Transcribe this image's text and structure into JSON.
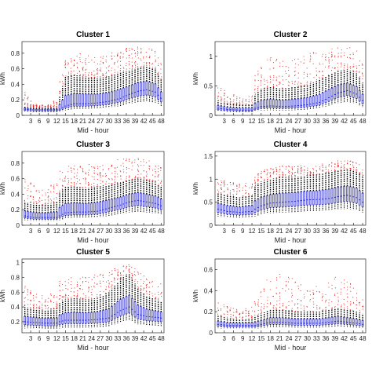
{
  "chart_data": [
    {
      "type": "box",
      "title": "Cluster 1",
      "xlabel": "Mid - hour",
      "ylabel": "kWh",
      "ylim": [
        0,
        0.95
      ],
      "yticks": [
        0,
        0.2,
        0.4,
        0.6,
        0.8
      ],
      "ytick_labels": [
        "0",
        "0.2",
        "0.4",
        "0.6",
        "0.8"
      ],
      "xlim": [
        0,
        49
      ],
      "xticks": [
        3,
        6,
        9,
        12,
        15,
        18,
        21,
        24,
        27,
        30,
        33,
        36,
        39,
        42,
        45,
        48
      ],
      "xtick_labels": [
        "3",
        "6",
        "9",
        "12",
        "15",
        "18",
        "21",
        "24",
        "27",
        "30",
        "33",
        "36",
        "39",
        "42",
        "45",
        "48"
      ],
      "mid_hours": [
        1,
        4,
        8,
        12,
        13,
        15,
        18,
        22,
        26,
        30,
        34,
        37,
        40,
        43,
        46,
        48
      ],
      "medians": [
        0.08,
        0.07,
        0.07,
        0.07,
        0.08,
        0.12,
        0.15,
        0.15,
        0.16,
        0.18,
        0.22,
        0.27,
        0.31,
        0.33,
        0.3,
        0.22
      ],
      "whisker_high": [
        0.12,
        0.1,
        0.1,
        0.1,
        0.25,
        0.5,
        0.52,
        0.5,
        0.48,
        0.5,
        0.55,
        0.58,
        0.62,
        0.64,
        0.6,
        0.45
      ],
      "outlier_max": [
        0.3,
        0.15,
        0.13,
        0.2,
        0.45,
        0.72,
        0.78,
        0.82,
        0.75,
        0.8,
        0.85,
        0.88,
        0.9,
        0.92,
        0.86,
        0.7
      ]
    },
    {
      "type": "box",
      "title": "Cluster 2",
      "xlabel": "Mid - hour",
      "ylabel": "kWh",
      "ylim": [
        0,
        1.25
      ],
      "yticks": [
        0,
        0.5,
        1
      ],
      "ytick_labels": [
        "0",
        "0.5",
        "1"
      ],
      "xlim": [
        0,
        49
      ],
      "xticks": [
        3,
        6,
        9,
        12,
        15,
        18,
        21,
        24,
        27,
        30,
        33,
        36,
        39,
        42,
        45,
        48
      ],
      "xtick_labels": [
        "3",
        "6",
        "9",
        "12",
        "15",
        "18",
        "21",
        "24",
        "27",
        "30",
        "33",
        "36",
        "39",
        "42",
        "45",
        "48"
      ],
      "mid_hours": [
        1,
        4,
        8,
        12,
        13,
        15,
        18,
        22,
        26,
        30,
        34,
        37,
        40,
        43,
        46,
        48
      ],
      "medians": [
        0.12,
        0.1,
        0.09,
        0.09,
        0.12,
        0.15,
        0.16,
        0.15,
        0.16,
        0.18,
        0.22,
        0.3,
        0.38,
        0.42,
        0.36,
        0.25
      ],
      "whisker_high": [
        0.25,
        0.2,
        0.18,
        0.18,
        0.35,
        0.45,
        0.48,
        0.45,
        0.48,
        0.52,
        0.6,
        0.68,
        0.75,
        0.78,
        0.72,
        0.55
      ],
      "outlier_max": [
        0.5,
        0.4,
        0.3,
        0.35,
        0.7,
        0.9,
        1.0,
        0.95,
        1.0,
        1.05,
        1.1,
        1.12,
        1.15,
        1.18,
        1.1,
        0.9
      ]
    },
    {
      "type": "box",
      "title": "Cluster 3",
      "xlabel": "Mid - hour",
      "ylabel": "kWh",
      "ylim": [
        0,
        0.95
      ],
      "yticks": [
        0,
        0.2,
        0.4,
        0.6,
        0.8
      ],
      "ytick_labels": [
        "0",
        "0.2",
        "0.4",
        "0.6",
        "0.8"
      ],
      "xlim": [
        0,
        49
      ],
      "xticks": [
        3,
        6,
        9,
        12,
        15,
        18,
        21,
        24,
        27,
        30,
        33,
        36,
        39,
        42,
        45,
        48
      ],
      "xtick_labels": [
        "3",
        "6",
        "9",
        "12",
        "15",
        "18",
        "21",
        "24",
        "27",
        "30",
        "33",
        "36",
        "39",
        "42",
        "45",
        "48"
      ],
      "mid_hours": [
        1,
        4,
        8,
        12,
        13,
        15,
        18,
        22,
        26,
        30,
        34,
        37,
        40,
        43,
        46,
        48
      ],
      "medians": [
        0.12,
        0.1,
        0.1,
        0.1,
        0.12,
        0.16,
        0.17,
        0.17,
        0.18,
        0.22,
        0.26,
        0.3,
        0.32,
        0.3,
        0.28,
        0.25
      ],
      "whisker_high": [
        0.3,
        0.28,
        0.26,
        0.3,
        0.42,
        0.5,
        0.5,
        0.48,
        0.5,
        0.52,
        0.55,
        0.58,
        0.6,
        0.58,
        0.55,
        0.5
      ],
      "outlier_max": [
        0.6,
        0.52,
        0.5,
        0.55,
        0.7,
        0.78,
        0.8,
        0.78,
        0.8,
        0.82,
        0.85,
        0.86,
        0.88,
        0.85,
        0.8,
        0.75
      ]
    },
    {
      "type": "box",
      "title": "Cluster 4",
      "xlabel": "Mid - hour",
      "ylabel": "kWh",
      "ylim": [
        0,
        1.6
      ],
      "yticks": [
        0,
        0.5,
        1,
        1.5
      ],
      "ytick_labels": [
        "0",
        "0.5",
        "1",
        "1.5"
      ],
      "xlim": [
        0,
        49
      ],
      "xticks": [
        3,
        6,
        9,
        12,
        15,
        18,
        21,
        24,
        27,
        30,
        33,
        36,
        39,
        42,
        45,
        48
      ],
      "xtick_labels": [
        "3",
        "6",
        "9",
        "12",
        "15",
        "18",
        "21",
        "24",
        "27",
        "30",
        "33",
        "36",
        "39",
        "42",
        "45",
        "48"
      ],
      "mid_hours": [
        1,
        4,
        8,
        12,
        13,
        15,
        18,
        22,
        26,
        30,
        34,
        37,
        40,
        43,
        46,
        48
      ],
      "medians": [
        0.35,
        0.3,
        0.28,
        0.3,
        0.35,
        0.42,
        0.48,
        0.5,
        0.52,
        0.55,
        0.56,
        0.58,
        0.62,
        0.65,
        0.6,
        0.5
      ],
      "whisker_high": [
        0.7,
        0.65,
        0.6,
        0.65,
        0.85,
        0.95,
        1.0,
        1.05,
        1.05,
        1.08,
        1.1,
        1.15,
        1.2,
        1.22,
        1.18,
        1.05
      ],
      "outlier_max": [
        1.0,
        0.95,
        0.9,
        0.95,
        1.1,
        1.2,
        1.25,
        1.3,
        1.28,
        1.3,
        1.32,
        1.35,
        1.4,
        1.42,
        1.38,
        1.25
      ]
    },
    {
      "type": "box",
      "title": "Cluster 5",
      "xlabel": "Mid - hour",
      "ylabel": "kWh",
      "ylim": [
        0.05,
        1.05
      ],
      "yticks": [
        0.2,
        0.4,
        0.6,
        0.8,
        1
      ],
      "ytick_labels": [
        "0.2",
        "0.4",
        "0.6",
        "0.8",
        "1"
      ],
      "xlim": [
        0,
        49
      ],
      "xticks": [
        3,
        6,
        9,
        12,
        15,
        18,
        21,
        24,
        27,
        30,
        33,
        36,
        39,
        42,
        45,
        48
      ],
      "xtick_labels": [
        "3",
        "6",
        "9",
        "12",
        "15",
        "18",
        "21",
        "24",
        "27",
        "30",
        "33",
        "36",
        "39",
        "42",
        "45",
        "48"
      ],
      "mid_hours": [
        1,
        4,
        8,
        12,
        13,
        15,
        18,
        22,
        26,
        30,
        34,
        37,
        40,
        43,
        46,
        48
      ],
      "medians": [
        0.2,
        0.19,
        0.18,
        0.18,
        0.2,
        0.22,
        0.22,
        0.22,
        0.23,
        0.25,
        0.35,
        0.4,
        0.3,
        0.27,
        0.26,
        0.25
      ],
      "whisker_high": [
        0.4,
        0.38,
        0.36,
        0.38,
        0.45,
        0.5,
        0.52,
        0.5,
        0.52,
        0.6,
        0.78,
        0.85,
        0.65,
        0.55,
        0.5,
        0.48
      ],
      "outlier_max": [
        0.7,
        0.6,
        0.55,
        0.6,
        0.75,
        0.8,
        0.82,
        0.8,
        0.85,
        0.9,
        0.95,
        0.98,
        0.9,
        0.82,
        0.78,
        0.72
      ]
    },
    {
      "type": "box",
      "title": "Cluster 6",
      "xlabel": "Mid - hour",
      "ylabel": "kWh",
      "ylim": [
        0,
        0.7
      ],
      "yticks": [
        0,
        0.2,
        0.4,
        0.6
      ],
      "ytick_labels": [
        "0",
        "0.2",
        "0.4",
        "0.6"
      ],
      "xlim": [
        0,
        49
      ],
      "xticks": [
        3,
        6,
        9,
        12,
        15,
        18,
        21,
        24,
        27,
        30,
        33,
        36,
        39,
        42,
        45,
        48
      ],
      "xtick_labels": [
        "3",
        "6",
        "9",
        "12",
        "15",
        "18",
        "21",
        "24",
        "27",
        "30",
        "33",
        "36",
        "39",
        "42",
        "45",
        "48"
      ],
      "mid_hours": [
        1,
        4,
        8,
        12,
        13,
        15,
        18,
        22,
        26,
        30,
        34,
        37,
        40,
        43,
        46,
        48
      ],
      "medians": [
        0.08,
        0.07,
        0.07,
        0.07,
        0.07,
        0.08,
        0.1,
        0.1,
        0.09,
        0.09,
        0.09,
        0.1,
        0.11,
        0.1,
        0.09,
        0.08
      ],
      "whisker_high": [
        0.16,
        0.14,
        0.13,
        0.14,
        0.15,
        0.18,
        0.22,
        0.22,
        0.2,
        0.2,
        0.2,
        0.22,
        0.24,
        0.22,
        0.2,
        0.18
      ],
      "outlier_max": [
        0.3,
        0.25,
        0.22,
        0.25,
        0.3,
        0.4,
        0.55,
        0.6,
        0.5,
        0.45,
        0.48,
        0.5,
        0.55,
        0.5,
        0.42,
        0.35
      ]
    }
  ],
  "colors": {
    "box": "#3030d0",
    "box_fill": "#c8c8ee",
    "whisker": "#000000",
    "outlier": "#e02020",
    "axis": "#262626"
  }
}
